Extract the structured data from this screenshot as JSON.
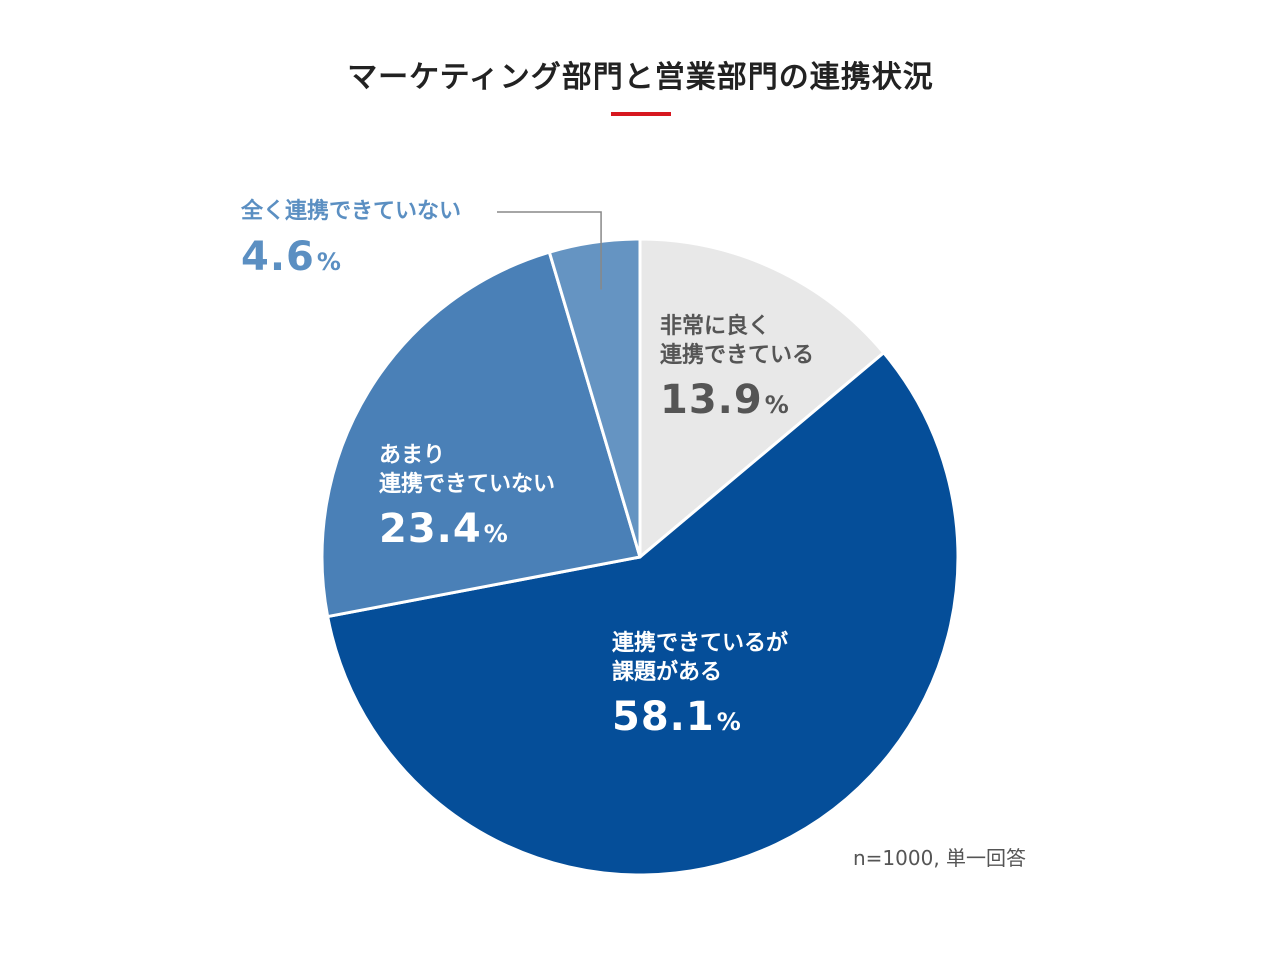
{
  "chart_data": {
    "type": "pie",
    "title": "マーケティング部門と営業部門の連携状況",
    "slices": [
      {
        "label_lines": [
          "非常に良く",
          "連携できている"
        ],
        "value": 13.9,
        "value_text": "13.9",
        "unit": "%",
        "color": "#e8e8e8",
        "text_color": "#555555"
      },
      {
        "label_lines": [
          "連携できているが",
          "課題がある"
        ],
        "value": 58.1,
        "value_text": "58.1",
        "unit": "%",
        "color": "#054e99",
        "text_color": "#ffffff"
      },
      {
        "label_lines": [
          "あまり",
          "連携できていない"
        ],
        "value": 23.4,
        "value_text": "23.4",
        "unit": "%",
        "color": "#4a80b7",
        "text_color": "#ffffff"
      },
      {
        "label_lines": [
          "全く連携できていない"
        ],
        "value": 4.6,
        "value_text": "4.6",
        "unit": "%",
        "color": "#6594c2",
        "text_color": "#5b8fc2"
      }
    ],
    "start": "top",
    "direction": "clockwise",
    "footnote": "n=1000, 単一回答"
  },
  "style": {
    "accent_color": "#d7171f",
    "divider_color": "#ffffff",
    "leader_color": "#888888"
  }
}
